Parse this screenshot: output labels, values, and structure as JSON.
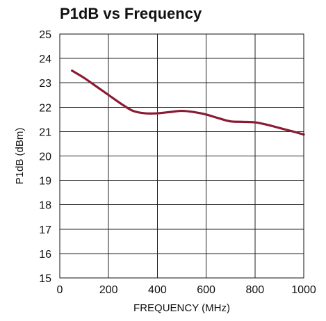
{
  "chart_data": {
    "type": "line",
    "title": "P1dB vs Frequency",
    "xlabel": "FREQUENCY (MHz)",
    "ylabel": "P1dB (dBm)",
    "xlim": [
      0,
      1000
    ],
    "ylim": [
      15,
      25
    ],
    "xticks": [
      0,
      200,
      400,
      600,
      800,
      1000
    ],
    "yticks": [
      15,
      16,
      17,
      18,
      19,
      20,
      21,
      22,
      23,
      24,
      25
    ],
    "grid": true,
    "legend": "none",
    "series": [
      {
        "color": "#8b1a34",
        "x": [
          50,
          100,
          150,
          200,
          250,
          300,
          350,
          400,
          450,
          500,
          550,
          600,
          650,
          700,
          750,
          800,
          850,
          900,
          950,
          1000
        ],
        "y": [
          23.5,
          23.2,
          22.85,
          22.5,
          22.15,
          21.85,
          21.75,
          21.75,
          21.8,
          21.85,
          21.8,
          21.7,
          21.55,
          21.42,
          21.4,
          21.38,
          21.28,
          21.15,
          21.02,
          20.88
        ]
      }
    ]
  }
}
